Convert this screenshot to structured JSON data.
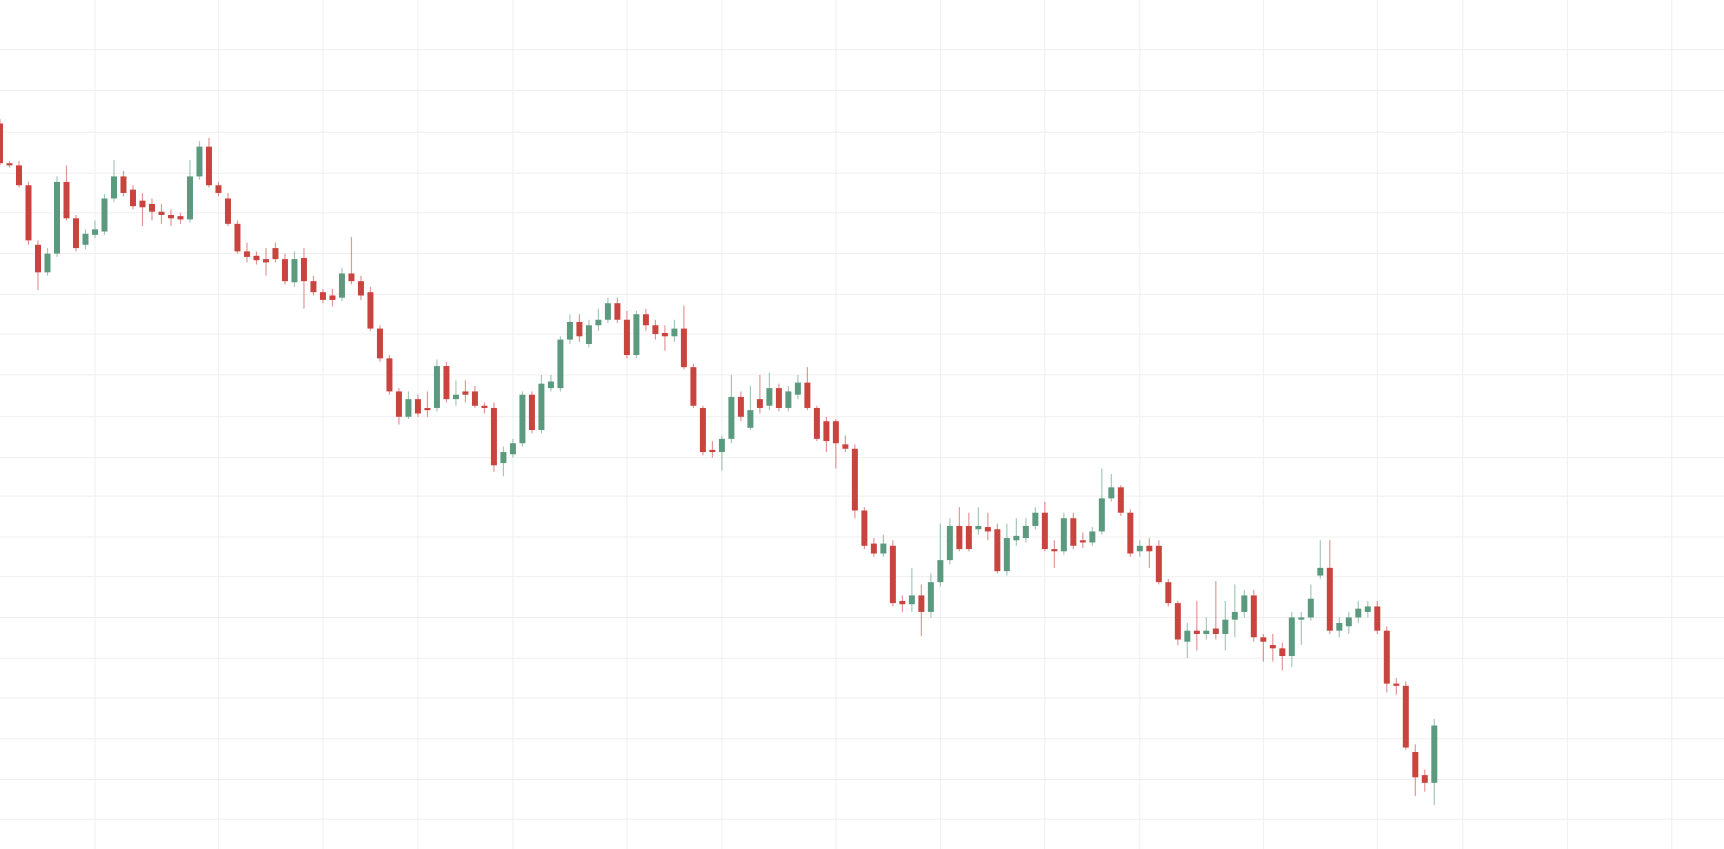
{
  "chart_data": {
    "type": "candlestick",
    "ohlc": [
      [
        888,
        892,
        850,
        852
      ],
      [
        852,
        854,
        848,
        850
      ],
      [
        850,
        854,
        830,
        832
      ],
      [
        832,
        835,
        778,
        782
      ],
      [
        778,
        782,
        737,
        753
      ],
      [
        753,
        775,
        750,
        770
      ],
      [
        770,
        840,
        767,
        835
      ],
      [
        835,
        850,
        800,
        802
      ],
      [
        802,
        805,
        772,
        775
      ],
      [
        778,
        792,
        774,
        788
      ],
      [
        787,
        800,
        784,
        792
      ],
      [
        790,
        824,
        787,
        820
      ],
      [
        820,
        855,
        817,
        840
      ],
      [
        840,
        845,
        822,
        825
      ],
      [
        828,
        832,
        810,
        813
      ],
      [
        818,
        825,
        795,
        812
      ],
      [
        815,
        820,
        800,
        808
      ],
      [
        808,
        815,
        797,
        805
      ],
      [
        805,
        810,
        795,
        802
      ],
      [
        804,
        807,
        797,
        801
      ],
      [
        801,
        855,
        798,
        840
      ],
      [
        840,
        872,
        837,
        867
      ],
      [
        867,
        875,
        830,
        832
      ],
      [
        832,
        835,
        822,
        825
      ],
      [
        820,
        825,
        795,
        797
      ],
      [
        797,
        800,
        770,
        772
      ],
      [
        772,
        780,
        762,
        767
      ],
      [
        768,
        772,
        760,
        764
      ],
      [
        765,
        775,
        750,
        762
      ],
      [
        775,
        780,
        762,
        765
      ],
      [
        765,
        770,
        742,
        745
      ],
      [
        744,
        772,
        740,
        765
      ],
      [
        766,
        775,
        720,
        745
      ],
      [
        745,
        750,
        732,
        735
      ],
      [
        735,
        738,
        725,
        728
      ],
      [
        732,
        738,
        722,
        728
      ],
      [
        730,
        757,
        727,
        752
      ],
      [
        752,
        785,
        742,
        745
      ],
      [
        745,
        750,
        728,
        732
      ],
      [
        735,
        740,
        700,
        702
      ],
      [
        702,
        705,
        672,
        675
      ],
      [
        675,
        678,
        642,
        645
      ],
      [
        645,
        648,
        615,
        622
      ],
      [
        622,
        645,
        620,
        638
      ],
      [
        638,
        642,
        622,
        625
      ],
      [
        630,
        645,
        622,
        628
      ],
      [
        630,
        674,
        627,
        668
      ],
      [
        668,
        672,
        635,
        638
      ],
      [
        638,
        655,
        632,
        642
      ],
      [
        645,
        655,
        635,
        642
      ],
      [
        645,
        650,
        630,
        632
      ],
      [
        632,
        635,
        625,
        630
      ],
      [
        630,
        635,
        572,
        578
      ],
      [
        580,
        595,
        568,
        590
      ],
      [
        588,
        602,
        585,
        598
      ],
      [
        598,
        645,
        595,
        642
      ],
      [
        642,
        645,
        607,
        610
      ],
      [
        610,
        660,
        607,
        652
      ],
      [
        648,
        660,
        645,
        654
      ],
      [
        648,
        695,
        645,
        692
      ],
      [
        692,
        715,
        688,
        708
      ],
      [
        708,
        715,
        690,
        695
      ],
      [
        688,
        710,
        685,
        705
      ],
      [
        705,
        720,
        700,
        710
      ],
      [
        710,
        730,
        707,
        725
      ],
      [
        725,
        730,
        707,
        710
      ],
      [
        710,
        718,
        675,
        678
      ],
      [
        678,
        718,
        675,
        715
      ],
      [
        715,
        720,
        700,
        705
      ],
      [
        705,
        710,
        692,
        697
      ],
      [
        698,
        705,
        682,
        695
      ],
      [
        695,
        710,
        690,
        702
      ],
      [
        702,
        723,
        665,
        667
      ],
      [
        667,
        670,
        630,
        632
      ],
      [
        630,
        632,
        587,
        590
      ],
      [
        592,
        600,
        585,
        590
      ],
      [
        590,
        605,
        573,
        602
      ],
      [
        602,
        660,
        598,
        640
      ],
      [
        640,
        645,
        618,
        622
      ],
      [
        612,
        650,
        610,
        628
      ],
      [
        638,
        660,
        625,
        630
      ],
      [
        632,
        662,
        628,
        648
      ],
      [
        648,
        652,
        627,
        630
      ],
      [
        630,
        650,
        627,
        645
      ],
      [
        642,
        660,
        638,
        653
      ],
      [
        653,
        667,
        628,
        630
      ],
      [
        630,
        632,
        600,
        602
      ],
      [
        618,
        622,
        590,
        600
      ],
      [
        618,
        620,
        575,
        598
      ],
      [
        597,
        605,
        590,
        593
      ],
      [
        593,
        597,
        530,
        537
      ],
      [
        537,
        540,
        502,
        505
      ],
      [
        507,
        512,
        495,
        498
      ],
      [
        498,
        515,
        495,
        507
      ],
      [
        505,
        510,
        450,
        453
      ],
      [
        455,
        460,
        445,
        452
      ],
      [
        452,
        485,
        445,
        460
      ],
      [
        460,
        470,
        423,
        445
      ],
      [
        445,
        480,
        440,
        472
      ],
      [
        472,
        525,
        468,
        492
      ],
      [
        492,
        530,
        488,
        523
      ],
      [
        523,
        540,
        500,
        502
      ],
      [
        523,
        535,
        500,
        502
      ],
      [
        520,
        540,
        515,
        523
      ],
      [
        522,
        535,
        510,
        518
      ],
      [
        520,
        525,
        480,
        482
      ],
      [
        482,
        525,
        478,
        512
      ],
      [
        510,
        530,
        505,
        514
      ],
      [
        512,
        530,
        508,
        523
      ],
      [
        523,
        540,
        520,
        535
      ],
      [
        535,
        545,
        500,
        502
      ],
      [
        502,
        510,
        485,
        500
      ],
      [
        500,
        535,
        497,
        530
      ],
      [
        530,
        535,
        502,
        505
      ],
      [
        510,
        517,
        503,
        508
      ],
      [
        508,
        522,
        505,
        518
      ],
      [
        518,
        575,
        515,
        548
      ],
      [
        548,
        570,
        545,
        558
      ],
      [
        558,
        560,
        532,
        535
      ],
      [
        535,
        538,
        495,
        498
      ],
      [
        500,
        510,
        495,
        505
      ],
      [
        505,
        512,
        485,
        500
      ],
      [
        505,
        510,
        470,
        472
      ],
      [
        472,
        475,
        450,
        453
      ],
      [
        453,
        455,
        415,
        420
      ],
      [
        418,
        435,
        403,
        428
      ],
      [
        428,
        455,
        410,
        425
      ],
      [
        425,
        440,
        420,
        428
      ],
      [
        430,
        473,
        420,
        425
      ],
      [
        425,
        455,
        410,
        438
      ],
      [
        438,
        470,
        422,
        445
      ],
      [
        445,
        465,
        440,
        460
      ],
      [
        460,
        465,
        418,
        422
      ],
      [
        422,
        425,
        400,
        418
      ],
      [
        415,
        425,
        400,
        412
      ],
      [
        412,
        417,
        392,
        405
      ],
      [
        405,
        445,
        395,
        440
      ],
      [
        438,
        445,
        415,
        440
      ],
      [
        440,
        470,
        437,
        457
      ],
      [
        478,
        510,
        475,
        485
      ],
      [
        485,
        510,
        425,
        428
      ],
      [
        428,
        440,
        422,
        435
      ],
      [
        432,
        445,
        425,
        440
      ],
      [
        440,
        455,
        435,
        448
      ],
      [
        445,
        455,
        440,
        450
      ],
      [
        450,
        455,
        425,
        428
      ],
      [
        428,
        432,
        372,
        380
      ],
      [
        380,
        385,
        370,
        378
      ],
      [
        378,
        382,
        320,
        322
      ],
      [
        318,
        325,
        278,
        295
      ],
      [
        297,
        302,
        282,
        290
      ],
      [
        290,
        348,
        270,
        342
      ]
    ],
    "xlim": [
      0,
      181.5
    ],
    "ylim": [
      230,
      1000
    ],
    "xticks": [
      10,
      23,
      34,
      44,
      54,
      66,
      76,
      88,
      99,
      110,
      120,
      133,
      145,
      154,
      165,
      176
    ],
    "yticks": [
      955,
      918,
      880,
      843,
      807,
      770,
      733,
      697,
      660,
      622,
      585,
      550,
      513,
      477,
      440,
      403,
      367,
      330,
      293,
      257
    ],
    "grid": true,
    "up_color": "#5c9a80",
    "down_color": "#c9443f"
  }
}
